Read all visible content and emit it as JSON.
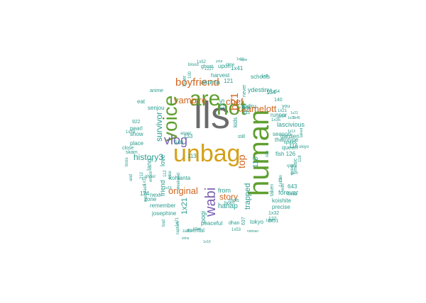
{
  "colors": {
    "gray": "#6b6b6b",
    "gold": "#d4a017",
    "green": "#5f9f2f",
    "orange": "#d0651f",
    "teal": "#2a9d8f",
    "purple": "#7a5fb0"
  },
  "words": [
    {
      "text": "lls",
      "color": "gray"
    },
    {
      "text": "unbag",
      "color": "gold"
    },
    {
      "text": "human",
      "color": "green"
    },
    {
      "text": "not",
      "color": "green"
    },
    {
      "text": "are",
      "color": "green"
    },
    {
      "text": "voice",
      "color": "green"
    },
    {
      "text": "vlog",
      "color": "purple"
    },
    {
      "text": "wabi",
      "color": "purple"
    },
    {
      "text": "kaamelott",
      "color": "orange"
    },
    {
      "text": "boyfriend",
      "color": "orange"
    },
    {
      "text": "vampire",
      "color": "orange"
    },
    {
      "text": "chef",
      "color": "orange"
    },
    {
      "text": "top",
      "color": "orange"
    },
    {
      "text": "b21",
      "color": "orange"
    },
    {
      "text": "original",
      "color": "orange"
    },
    {
      "text": "story",
      "color": "orange"
    },
    {
      "text": "history3",
      "color": "teal"
    },
    {
      "text": "survivor",
      "color": "teal"
    },
    {
      "text": "1x21",
      "color": "teal"
    },
    {
      "text": "trapped",
      "color": "teal"
    },
    {
      "text": "hanap",
      "color": "teal"
    },
    {
      "text": "lascivious",
      "color": "teal"
    },
    {
      "text": "110",
      "color": "teal"
    },
    {
      "text": "akuma",
      "color": "teal"
    },
    {
      "text": "rpdru",
      "color": "teal"
    },
    {
      "text": "ydestiny",
      "color": "teal"
    },
    {
      "text": "friend",
      "color": "teal"
    },
    {
      "text": "love",
      "color": "teal"
    },
    {
      "text": "lang",
      "color": "teal"
    },
    {
      "text": "pogi",
      "color": "teal"
    },
    {
      "text": "125",
      "color": "teal"
    },
    {
      "text": "season",
      "color": "teal"
    },
    {
      "text": "tharntype",
      "color": "teal"
    },
    {
      "text": "forever",
      "color": "teal"
    },
    {
      "text": "koishite",
      "color": "teal"
    },
    {
      "text": "precise",
      "color": "teal"
    },
    {
      "text": "from",
      "color": "teal"
    },
    {
      "text": "kohlanta",
      "color": "teal"
    },
    {
      "text": "mental",
      "color": "teal"
    },
    {
      "text": "peaceful",
      "color": "teal"
    },
    {
      "text": "tokyo",
      "color": "teal"
    },
    {
      "text": "josephine",
      "color": "teal"
    },
    {
      "text": "remember",
      "color": "teal"
    },
    {
      "text": "zone",
      "color": "teal"
    },
    {
      "text": "next",
      "color": "teal"
    },
    {
      "text": "runner",
      "color": "teal"
    },
    {
      "text": "schools",
      "color": "teal"
    },
    {
      "text": "harvest",
      "color": "teal"
    },
    {
      "text": "upon",
      "color": "teal"
    },
    {
      "text": "1x41",
      "color": "teal"
    },
    {
      "text": "121",
      "color": "teal"
    },
    {
      "text": "134",
      "color": "teal"
    },
    {
      "text": "fish 126",
      "color": "teal"
    },
    {
      "text": "gardien",
      "color": "teal"
    },
    {
      "text": "queen",
      "color": "teal"
    },
    {
      "text": "116",
      "color": "teal"
    },
    {
      "text": "643",
      "color": "teal"
    },
    {
      "text": "640",
      "color": "teal"
    },
    {
      "text": "anime",
      "color": "teal"
    },
    {
      "text": "eat",
      "color": "teal"
    },
    {
      "text": "senjou",
      "color": "teal"
    },
    {
      "text": "922",
      "color": "teal"
    },
    {
      "text": "pearl",
      "color": "teal"
    },
    {
      "text": "show",
      "color": "teal"
    },
    {
      "text": "place",
      "color": "teal"
    },
    {
      "text": "close",
      "color": "teal"
    },
    {
      "text": "skam",
      "color": "teal"
    },
    {
      "text": "124",
      "color": "teal"
    },
    {
      "text": "113",
      "color": "teal"
    },
    {
      "text": "133",
      "color": "teal"
    },
    {
      "text": "kids",
      "color": "teal"
    },
    {
      "text": "still",
      "color": "teal"
    },
    {
      "text": "140",
      "color": "teal"
    },
    {
      "text": "you",
      "color": "teal"
    },
    {
      "text": "born",
      "color": "teal"
    },
    {
      "text": "mols",
      "color": "teal"
    },
    {
      "text": "taken",
      "color": "teal"
    },
    {
      "text": "1x32",
      "color": "teal"
    },
    {
      "text": "122",
      "color": "teal"
    },
    {
      "text": "112",
      "color": "teal"
    },
    {
      "text": "boss",
      "color": "teal"
    },
    {
      "text": "1x54",
      "color": "teal"
    },
    {
      "text": "1227",
      "color": "teal"
    },
    {
      "text": "100",
      "color": "teal"
    },
    {
      "text": "111",
      "color": "teal"
    },
    {
      "text": "lets",
      "color": "teal"
    },
    {
      "text": "637",
      "color": "teal"
    },
    {
      "text": "dhan",
      "color": "teal"
    },
    {
      "text": "never",
      "color": "teal"
    },
    {
      "text": "lover",
      "color": "teal"
    },
    {
      "text": "ghost",
      "color": "teal"
    },
    {
      "text": "blood",
      "color": "teal"
    },
    {
      "text": "time",
      "color": "teal"
    },
    {
      "text": "music",
      "color": "teal"
    },
    {
      "text": "1x51",
      "color": "teal"
    },
    {
      "text": "weekend",
      "color": "teal"
    },
    {
      "text": "ghoul",
      "color": "teal"
    },
    {
      "text": "1x31",
      "color": "teal"
    },
    {
      "text": "dash",
      "color": "teal"
    },
    {
      "text": "212",
      "color": "teal"
    },
    {
      "text": "most",
      "color": "teal"
    },
    {
      "text": "1x33",
      "color": "teal"
    },
    {
      "text": "angel",
      "color": "teal"
    },
    {
      "text": "wtock",
      "color": "teal"
    },
    {
      "text": "and",
      "color": "teal"
    },
    {
      "text": "bad",
      "color": "teal"
    },
    {
      "text": "tobe",
      "color": "teal"
    },
    {
      "text": "rpdrs",
      "color": "teal"
    },
    {
      "text": "bsoa",
      "color": "teal"
    },
    {
      "text": "with",
      "color": "teal"
    },
    {
      "text": "can",
      "color": "teal"
    },
    {
      "text": "queer",
      "color": "teal"
    },
    {
      "text": "1x4",
      "color": "teal"
    },
    {
      "text": "1x52",
      "color": "teal"
    },
    {
      "text": "your",
      "color": "teal"
    },
    {
      "text": "style",
      "color": "teal"
    },
    {
      "text": "jam",
      "color": "teal"
    },
    {
      "text": "1x51",
      "color": "teal"
    },
    {
      "text": "rapture",
      "color": "teal"
    },
    {
      "text": "idae",
      "color": "teal"
    },
    {
      "text": "1x71",
      "color": "teal"
    },
    {
      "text": "zaflu",
      "color": "teal"
    },
    {
      "text": "1x53",
      "color": "teal"
    },
    {
      "text": "isfe",
      "color": "teal"
    },
    {
      "text": "1x14",
      "color": "teal"
    },
    {
      "text": "1x21",
      "color": "teal"
    },
    {
      "text": "118",
      "color": "teal"
    },
    {
      "text": "ukiyo",
      "color": "teal"
    },
    {
      "text": "lipstick",
      "color": "teal"
    },
    {
      "text": "1x13",
      "color": "teal"
    },
    {
      "text": "1x21",
      "color": "teal"
    },
    {
      "text": "1x45",
      "color": "teal"
    },
    {
      "text": "1x23",
      "color": "teal"
    },
    {
      "text": "1x12",
      "color": "teal"
    },
    {
      "text": "1x15",
      "color": "teal"
    },
    {
      "text": "1x35",
      "color": "teal"
    },
    {
      "text": "talked",
      "color": "teal"
    },
    {
      "text": "1x22",
      "color": "teal"
    },
    {
      "text": "1x16",
      "color": "teal"
    },
    {
      "text": "sims",
      "color": "teal"
    },
    {
      "text": "nistnan",
      "color": "teal"
    },
    {
      "text": "queen",
      "color": "teal"
    },
    {
      "text": "ror",
      "color": "teal"
    },
    {
      "text": "1x72",
      "color": "teal"
    },
    {
      "text": "unbelieved",
      "color": "teal"
    },
    {
      "text": "mikeisatra",
      "color": "teal"
    },
    {
      "text": "sam",
      "color": "teal"
    }
  ]
}
